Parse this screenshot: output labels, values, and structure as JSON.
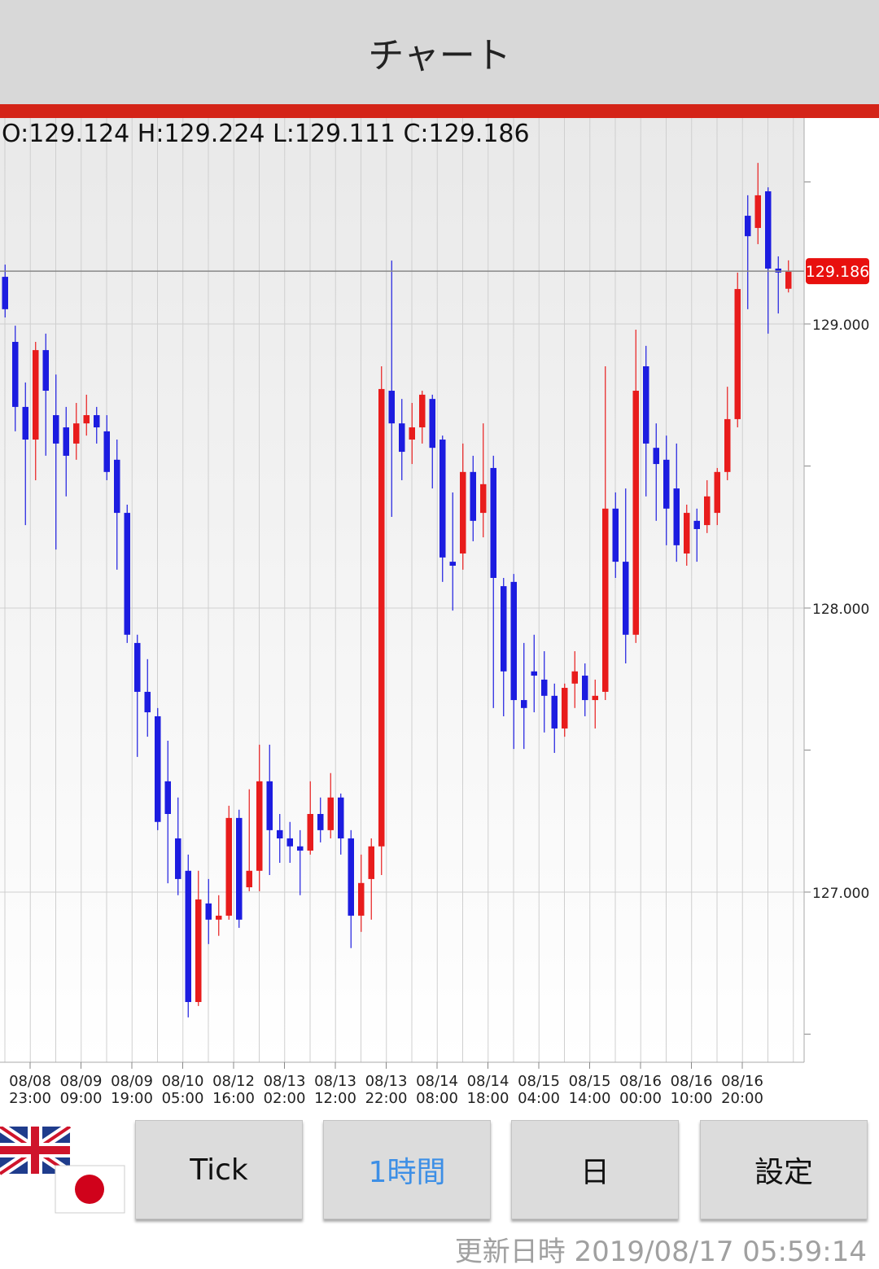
{
  "header": {
    "title": "チャート"
  },
  "chart_data": {
    "type": "candlestick",
    "ohlc_text": "O:129.124 H:129.224 L:129.111 C:129.186",
    "up_color": "#e81c1c",
    "down_color": "#1c1ce0",
    "ylim": [
      126.401,
      129.725
    ],
    "yticks": [
      {
        "value": 127,
        "label": "127.000"
      },
      {
        "value": 128,
        "label": "128.000"
      },
      {
        "value": 129,
        "label": "129.000"
      }
    ],
    "minor_yticks": [
      126.5,
      127.5,
      128.5,
      129.5
    ],
    "last": 129.186,
    "x_labels": [
      [
        "08/08",
        "23:00"
      ],
      [
        "08/09",
        "09:00"
      ],
      [
        "08/09",
        "19:00"
      ],
      [
        "08/10",
        "05:00"
      ],
      [
        "08/12",
        "16:00"
      ],
      [
        "08/13",
        "02:00"
      ],
      [
        "08/13",
        "12:00"
      ],
      [
        "08/13",
        "22:00"
      ],
      [
        "08/14",
        "08:00"
      ],
      [
        "08/14",
        "18:00"
      ],
      [
        "08/15",
        "04:00"
      ],
      [
        "08/15",
        "14:00"
      ],
      [
        "08/16",
        "00:00"
      ],
      [
        "08/16",
        "10:00"
      ],
      [
        "08/16",
        "20:00"
      ]
    ],
    "ohlc": [
      [
        129.166,
        129.209,
        129.023,
        129.052
      ],
      [
        128.937,
        128.994,
        128.622,
        128.708
      ],
      [
        128.708,
        128.794,
        128.292,
        128.593
      ],
      [
        128.593,
        128.937,
        128.45,
        128.908
      ],
      [
        128.908,
        128.966,
        128.536,
        128.765
      ],
      [
        128.679,
        128.822,
        128.206,
        128.579
      ],
      [
        128.636,
        128.708,
        128.393,
        128.536
      ],
      [
        128.579,
        128.722,
        128.522,
        128.65
      ],
      [
        128.65,
        128.751,
        128.607,
        128.679
      ],
      [
        128.679,
        128.708,
        128.579,
        128.636
      ],
      [
        128.622,
        128.679,
        128.45,
        128.479
      ],
      [
        128.522,
        128.593,
        128.135,
        128.335
      ],
      [
        128.335,
        128.364,
        127.877,
        127.906
      ],
      [
        127.877,
        127.906,
        127.476,
        127.705
      ],
      [
        127.705,
        127.82,
        127.547,
        127.633
      ],
      [
        127.619,
        127.648,
        127.218,
        127.247
      ],
      [
        127.39,
        127.533,
        127.031,
        127.275
      ],
      [
        127.189,
        127.333,
        126.989,
        127.046
      ],
      [
        127.075,
        127.132,
        126.559,
        126.613
      ],
      [
        126.613,
        127.075,
        126.599,
        126.974
      ],
      [
        126.96,
        127.046,
        126.817,
        126.903
      ],
      [
        126.903,
        126.989,
        126.846,
        126.917
      ],
      [
        126.917,
        127.304,
        126.903,
        127.261
      ],
      [
        127.261,
        127.29,
        126.874,
        126.903
      ],
      [
        127.017,
        127.362,
        127.003,
        127.075
      ],
      [
        127.075,
        127.519,
        127.003,
        127.39
      ],
      [
        127.39,
        127.519,
        127.06,
        127.218
      ],
      [
        127.218,
        127.275,
        127.103,
        127.189
      ],
      [
        127.189,
        127.247,
        127.103,
        127.161
      ],
      [
        127.161,
        127.218,
        126.989,
        127.146
      ],
      [
        127.146,
        127.39,
        127.132,
        127.275
      ],
      [
        127.275,
        127.333,
        127.175,
        127.218
      ],
      [
        127.218,
        127.419,
        127.189,
        127.333
      ],
      [
        127.333,
        127.347,
        127.132,
        127.189
      ],
      [
        127.189,
        127.218,
        126.803,
        126.917
      ],
      [
        126.917,
        127.132,
        126.86,
        127.032
      ],
      [
        127.046,
        127.189,
        126.903,
        127.161
      ],
      [
        127.161,
        128.851,
        127.06,
        128.771
      ],
      [
        128.765,
        129.223,
        128.321,
        128.65
      ],
      [
        128.65,
        128.736,
        128.45,
        128.55
      ],
      [
        128.593,
        128.722,
        128.507,
        128.636
      ],
      [
        128.636,
        128.765,
        128.579,
        128.751
      ],
      [
        128.736,
        128.751,
        128.421,
        128.564
      ],
      [
        128.593,
        128.607,
        128.092,
        128.178
      ],
      [
        128.163,
        128.407,
        127.991,
        128.149
      ],
      [
        128.192,
        128.579,
        128.135,
        128.479
      ],
      [
        128.479,
        128.536,
        128.235,
        128.307
      ],
      [
        128.335,
        128.65,
        128.249,
        128.436
      ],
      [
        128.493,
        128.536,
        127.648,
        128.106
      ],
      [
        128.077,
        128.106,
        127.619,
        127.777
      ],
      [
        128.092,
        128.12,
        127.504,
        127.676
      ],
      [
        127.676,
        127.877,
        127.504,
        127.648
      ],
      [
        127.777,
        127.906,
        127.633,
        127.762
      ],
      [
        127.748,
        127.848,
        127.562,
        127.691
      ],
      [
        127.691,
        127.734,
        127.49,
        127.576
      ],
      [
        127.576,
        127.734,
        127.547,
        127.719
      ],
      [
        127.734,
        127.848,
        127.648,
        127.777
      ],
      [
        127.762,
        127.805,
        127.619,
        127.676
      ],
      [
        127.676,
        127.748,
        127.576,
        127.691
      ],
      [
        127.705,
        128.851,
        127.676,
        128.35
      ],
      [
        128.35,
        128.407,
        128.106,
        128.163
      ],
      [
        128.163,
        128.421,
        127.805,
        127.906
      ],
      [
        127.906,
        128.98,
        127.877,
        128.765
      ],
      [
        128.851,
        128.923,
        128.393,
        128.579
      ],
      [
        128.564,
        128.65,
        128.307,
        128.507
      ],
      [
        128.522,
        128.607,
        128.221,
        128.35
      ],
      [
        128.421,
        128.579,
        128.163,
        128.221
      ],
      [
        128.192,
        128.364,
        128.149,
        128.335
      ],
      [
        128.307,
        128.35,
        128.163,
        128.278
      ],
      [
        128.292,
        128.45,
        128.264,
        128.393
      ],
      [
        128.335,
        128.493,
        128.292,
        128.479
      ],
      [
        128.479,
        128.779,
        128.45,
        128.665
      ],
      [
        128.665,
        129.181,
        128.636,
        129.123
      ],
      [
        129.381,
        129.453,
        129.052,
        129.309
      ],
      [
        129.338,
        129.567,
        129.281,
        129.453
      ],
      [
        129.467,
        129.481,
        128.966,
        129.195
      ],
      [
        129.195,
        129.238,
        129.037,
        129.181
      ],
      [
        129.124,
        129.224,
        129.111,
        129.186
      ]
    ]
  },
  "buttons": [
    "Tick",
    "1時間",
    "日",
    "設定"
  ],
  "selected_button": 1,
  "footer": {
    "updated": "更新日時 2019/08/17 05:59:14"
  }
}
